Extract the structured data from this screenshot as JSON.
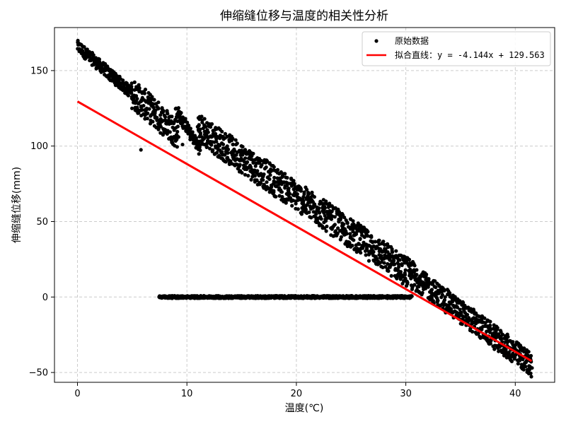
{
  "chart_data": {
    "type": "scatter",
    "title": "伸缩缝位移与温度的相关性分析",
    "xlabel": "温度(℃)",
    "ylabel": "伸缩缝位移(mm)",
    "xlim": [
      -2.1,
      43.6
    ],
    "ylim": [
      -56.5,
      178.5
    ],
    "xticks": [
      0,
      10,
      20,
      30,
      40
    ],
    "yticks": [
      -50,
      0,
      50,
      100,
      150
    ],
    "grid": true,
    "legend_position": "top-right",
    "colors": {
      "points": "#000000",
      "fit": "#ff0000",
      "grid": "#cccccc"
    },
    "series": [
      {
        "name": "原始数据",
        "kind": "scatter",
        "segments": [
          {
            "x": [
              0.0,
              5.0
            ],
            "y_center": [
              166.0,
              135.0
            ],
            "band": 4
          },
          {
            "x": [
              5.0,
              9.2
            ],
            "y_center": [
              135.0,
              108.0
            ],
            "band": 10
          },
          {
            "x": [
              9.0,
              11.2
            ],
            "y_center": [
              124.0,
              98.0
            ],
            "band": 4
          },
          {
            "x": [
              11.0,
              31.0
            ],
            "y_center": [
              112.0,
              12.0
            ],
            "band": 10
          },
          {
            "x": [
              31.0,
              41.5
            ],
            "y_center": [
              12.0,
              -45.0
            ],
            "band": 8
          },
          {
            "x": [
              7.5,
              30.5
            ],
            "y_center": [
              0.0,
              0.0
            ],
            "band": 0.8
          }
        ],
        "outliers": [
          {
            "x": 5.8,
            "y": 97.5
          },
          {
            "x": 9.6,
            "y": 101.0
          }
        ]
      },
      {
        "name": "拟合直线：y = -4.144x + 129.563",
        "kind": "line",
        "slope": -4.144,
        "intercept": 129.563,
        "x_range": [
          0.0,
          41.5
        ]
      }
    ]
  }
}
